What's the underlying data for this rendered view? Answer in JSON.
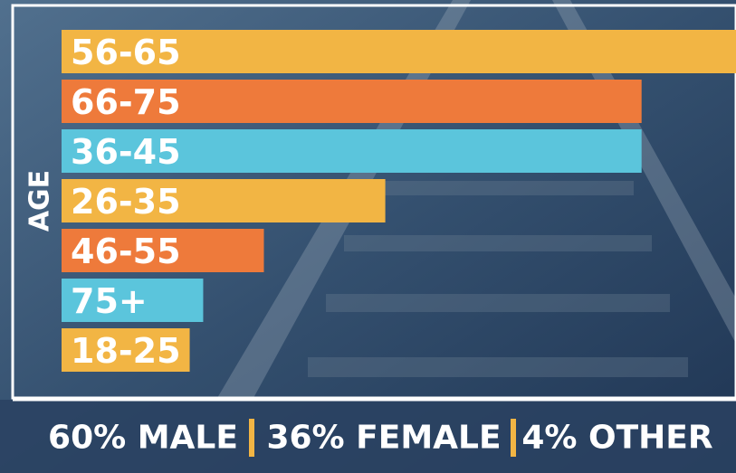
{
  "chart_data": {
    "type": "bar",
    "orientation": "horizontal",
    "axis_label": "AGE",
    "categories": [
      "56-65",
      "66-75",
      "36-45",
      "26-35",
      "46-55",
      "75+",
      "18-25"
    ],
    "values": [
      100,
      86,
      86,
      48,
      30,
      21,
      19
    ],
    "colors": [
      "#f2b544",
      "#ee7a3b",
      "#5bc5dc",
      "#f2b544",
      "#ee7a3b",
      "#5bc5dc",
      "#f2b544"
    ],
    "xlim": [
      0,
      100
    ],
    "footer": [
      "60% MALE",
      "36% FEMALE",
      "4% OTHER"
    ]
  }
}
